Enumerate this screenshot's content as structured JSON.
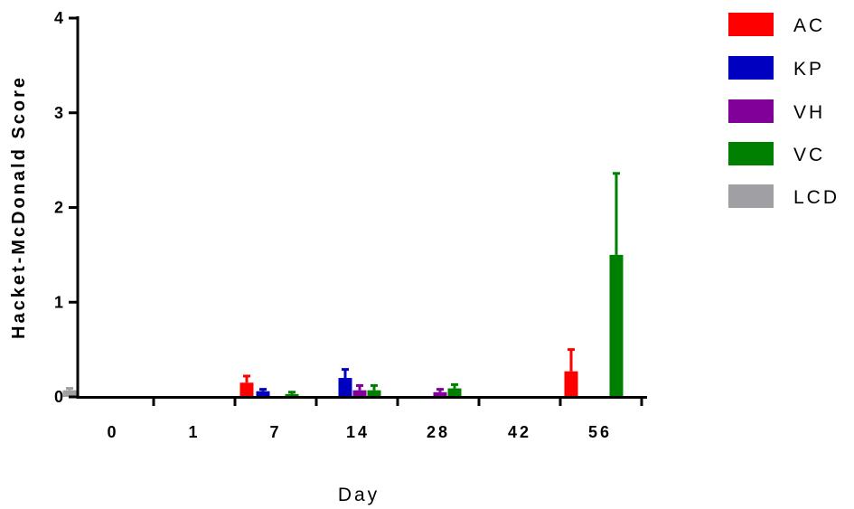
{
  "chart_data": {
    "type": "bar",
    "title": "",
    "xlabel": "Day",
    "ylabel": "Hacket-McDonald Score",
    "categories": [
      "0",
      "1",
      "7",
      "14",
      "28",
      "42",
      "56"
    ],
    "ylim": [
      0,
      4
    ],
    "yticks": [
      "0",
      "1",
      "2",
      "3",
      "4"
    ],
    "legend_position": "right",
    "series": [
      {
        "name": "AC",
        "color": "#ff0000",
        "values": [
          0,
          0,
          0.15,
          0,
          0,
          0,
          0.27
        ],
        "errors": [
          0,
          0,
          0.07,
          0,
          0,
          0,
          0.23
        ]
      },
      {
        "name": "KP",
        "color": "#0000c0",
        "values": [
          0,
          0,
          0.06,
          0.2,
          0,
          0,
          0
        ],
        "errors": [
          0,
          0,
          0.02,
          0.09,
          0,
          0,
          0
        ]
      },
      {
        "name": "VH",
        "color": "#800099",
        "values": [
          0,
          0,
          0,
          0.07,
          0.05,
          0,
          0
        ],
        "errors": [
          0,
          0,
          0,
          0.05,
          0.03,
          0,
          0
        ]
      },
      {
        "name": "VC",
        "color": "#008000",
        "values": [
          0,
          0,
          0.03,
          0.07,
          0.09,
          0,
          1.5
        ],
        "errors": [
          0,
          0,
          0.02,
          0.05,
          0.04,
          0,
          0.86
        ]
      },
      {
        "name": "LCD",
        "color": "#a0a0a4",
        "values": [
          0.07,
          0,
          0,
          0,
          0,
          0,
          0
        ],
        "errors": [
          0.02,
          0,
          0,
          0,
          0,
          0,
          0
        ]
      }
    ]
  }
}
